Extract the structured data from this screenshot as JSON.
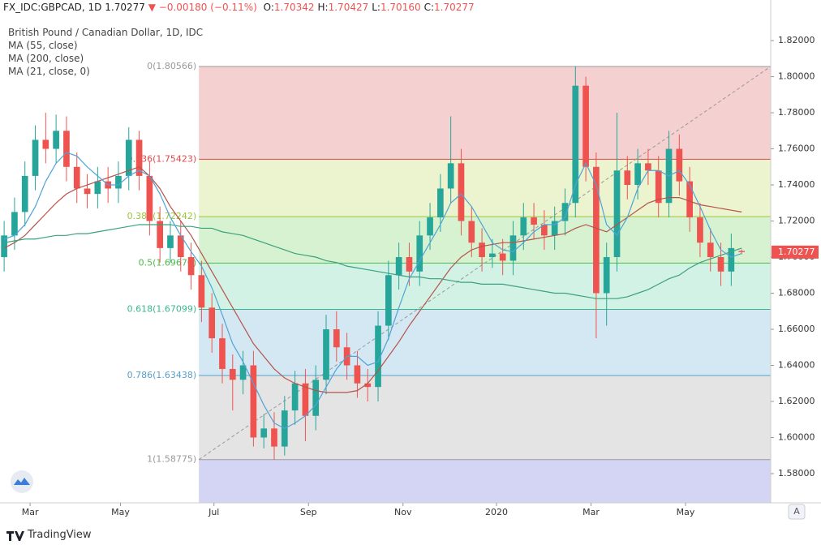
{
  "header": {
    "symbol": "FX_IDC:GBPCAD, 1D",
    "last": "1.70277",
    "change": "▼ −0.00180 (−0.11%)",
    "ohlc": [
      {
        "label": "O:",
        "value": "1.70342"
      },
      {
        "label": "H:",
        "value": "1.70427"
      },
      {
        "label": "L:",
        "value": "1.70160"
      },
      {
        "label": "C:",
        "value": "1.70277"
      }
    ]
  },
  "brand": "TradingView",
  "scale_button": "A",
  "chart_data": {
    "type": "candlestick",
    "title": "British Pound / Canadian Dollar, 1D, IDC",
    "up_color": "#26a69a",
    "down_color": "#ef5350",
    "open": [
      1.7,
      1.712,
      1.725,
      1.745,
      1.765,
      1.76,
      1.77,
      1.75,
      1.738,
      1.735,
      1.742,
      1.738,
      1.745,
      1.765,
      1.745,
      1.72,
      1.705,
      1.712,
      1.7,
      1.69,
      1.672,
      1.655,
      1.638,
      1.632,
      1.64,
      1.6,
      1.605,
      1.595,
      1.615,
      1.63,
      1.612,
      1.632,
      1.66,
      1.65,
      1.64,
      1.63,
      1.628,
      1.662,
      1.69,
      1.7,
      1.692,
      1.712,
      1.722,
      1.738,
      1.752,
      1.72,
      1.708,
      1.7,
      1.702,
      1.698,
      1.712,
      1.722,
      1.718,
      1.712,
      1.72,
      1.73,
      1.795,
      1.75,
      1.68,
      1.7,
      1.748,
      1.74,
      1.752,
      1.748,
      1.73,
      1.76,
      1.742,
      1.722,
      1.708,
      1.7,
      1.692,
      1.70342
    ],
    "high": [
      1.72,
      1.733,
      1.753,
      1.773,
      1.78,
      1.779,
      1.778,
      1.758,
      1.746,
      1.75,
      1.75,
      1.753,
      1.772,
      1.77,
      1.753,
      1.728,
      1.72,
      1.72,
      1.708,
      1.698,
      1.68,
      1.663,
      1.646,
      1.648,
      1.648,
      1.613,
      1.614,
      1.623,
      1.637,
      1.638,
      1.64,
      1.668,
      1.67,
      1.658,
      1.648,
      1.638,
      1.67,
      1.698,
      1.708,
      1.708,
      1.72,
      1.73,
      1.746,
      1.778,
      1.76,
      1.728,
      1.716,
      1.71,
      1.71,
      1.72,
      1.73,
      1.73,
      1.726,
      1.728,
      1.738,
      1.8057,
      1.8,
      1.758,
      1.708,
      1.78,
      1.756,
      1.76,
      1.76,
      1.756,
      1.77,
      1.768,
      1.75,
      1.73,
      1.716,
      1.708,
      1.713,
      1.70427
    ],
    "low": [
      1.692,
      1.704,
      1.717,
      1.737,
      1.752,
      1.752,
      1.742,
      1.73,
      1.727,
      1.727,
      1.73,
      1.73,
      1.737,
      1.737,
      1.712,
      1.697,
      1.697,
      1.692,
      1.682,
      1.664,
      1.647,
      1.63,
      1.615,
      1.624,
      1.595,
      1.594,
      1.5878,
      1.59,
      1.607,
      1.598,
      1.604,
      1.624,
      1.642,
      1.632,
      1.622,
      1.62,
      1.62,
      1.654,
      1.682,
      1.684,
      1.684,
      1.704,
      1.714,
      1.73,
      1.712,
      1.7,
      1.692,
      1.694,
      1.69,
      1.69,
      1.704,
      1.71,
      1.704,
      1.704,
      1.712,
      1.722,
      1.742,
      1.655,
      1.662,
      1.692,
      1.732,
      1.732,
      1.74,
      1.722,
      1.722,
      1.734,
      1.714,
      1.7,
      1.692,
      1.684,
      1.684,
      1.7016
    ],
    "close": [
      1.712,
      1.725,
      1.745,
      1.765,
      1.76,
      1.77,
      1.75,
      1.738,
      1.735,
      1.742,
      1.738,
      1.745,
      1.765,
      1.745,
      1.72,
      1.705,
      1.712,
      1.7,
      1.69,
      1.672,
      1.655,
      1.638,
      1.632,
      1.64,
      1.6,
      1.605,
      1.595,
      1.615,
      1.63,
      1.612,
      1.632,
      1.66,
      1.65,
      1.64,
      1.63,
      1.628,
      1.662,
      1.69,
      1.7,
      1.692,
      1.712,
      1.722,
      1.738,
      1.752,
      1.72,
      1.708,
      1.7,
      1.702,
      1.698,
      1.712,
      1.722,
      1.718,
      1.712,
      1.72,
      1.73,
      1.795,
      1.75,
      1.68,
      1.7,
      1.748,
      1.74,
      1.752,
      1.748,
      1.73,
      1.76,
      1.742,
      1.722,
      1.708,
      1.7,
      1.692,
      1.705,
      1.70277
    ],
    "series": [
      {
        "name": "MA (55, close)",
        "color": "#b5534a",
        "values": [
          1.705,
          1.708,
          1.712,
          1.718,
          1.724,
          1.73,
          1.735,
          1.738,
          1.74,
          1.742,
          1.744,
          1.746,
          1.748,
          1.75,
          1.745,
          1.738,
          1.728,
          1.72,
          1.712,
          1.702,
          1.692,
          1.682,
          1.672,
          1.662,
          1.652,
          1.645,
          1.638,
          1.633,
          1.63,
          1.628,
          1.626,
          1.625,
          1.625,
          1.625,
          1.626,
          1.63,
          1.637,
          1.645,
          1.653,
          1.662,
          1.67,
          1.678,
          1.686,
          1.694,
          1.7,
          1.704,
          1.706,
          1.707,
          1.708,
          1.708,
          1.709,
          1.71,
          1.711,
          1.712,
          1.713,
          1.716,
          1.718,
          1.716,
          1.714,
          1.718,
          1.722,
          1.726,
          1.73,
          1.732,
          1.733,
          1.733,
          1.731,
          1.729,
          1.728,
          1.727,
          1.726,
          1.725
        ]
      },
      {
        "name": "MA (200, close)",
        "color": "#3aa17e",
        "values": [
          1.708,
          1.709,
          1.71,
          1.71,
          1.711,
          1.712,
          1.712,
          1.713,
          1.713,
          1.714,
          1.715,
          1.716,
          1.717,
          1.718,
          1.718,
          1.718,
          1.718,
          1.717,
          1.717,
          1.716,
          1.716,
          1.714,
          1.713,
          1.712,
          1.71,
          1.708,
          1.706,
          1.704,
          1.702,
          1.701,
          1.7,
          1.698,
          1.697,
          1.695,
          1.694,
          1.693,
          1.692,
          1.691,
          1.69,
          1.689,
          1.689,
          1.688,
          1.688,
          1.687,
          1.686,
          1.686,
          1.685,
          1.685,
          1.685,
          1.684,
          1.683,
          1.682,
          1.681,
          1.68,
          1.68,
          1.679,
          1.678,
          1.677,
          1.677,
          1.677,
          1.678,
          1.68,
          1.682,
          1.685,
          1.688,
          1.69,
          1.694,
          1.697,
          1.699,
          1.701,
          1.703,
          1.705
        ]
      },
      {
        "name": "MA (21, close, 0)",
        "color": "#4ea3d8",
        "values": [
          1.71,
          1.712,
          1.718,
          1.728,
          1.742,
          1.752,
          1.758,
          1.756,
          1.75,
          1.745,
          1.74,
          1.74,
          1.745,
          1.748,
          1.745,
          1.735,
          1.722,
          1.712,
          1.703,
          1.695,
          1.683,
          1.668,
          1.652,
          1.642,
          1.63,
          1.618,
          1.608,
          1.605,
          1.608,
          1.612,
          1.618,
          1.628,
          1.638,
          1.645,
          1.645,
          1.64,
          1.642,
          1.655,
          1.672,
          1.688,
          1.698,
          1.708,
          1.718,
          1.73,
          1.735,
          1.728,
          1.718,
          1.708,
          1.704,
          1.703,
          1.708,
          1.714,
          1.718,
          1.718,
          1.722,
          1.74,
          1.752,
          1.74,
          1.718,
          1.712,
          1.722,
          1.738,
          1.748,
          1.748,
          1.745,
          1.748,
          1.74,
          1.728,
          1.715,
          1.704,
          1.7,
          1.702
        ]
      }
    ],
    "fib_start_x": 18.75,
    "fib_levels": [
      {
        "label": "0(1.80566)",
        "price": 1.80566,
        "color": "#999999",
        "fill": "#f5d0d0"
      },
      {
        "label": "0.236(1.75423)",
        "price": 1.75423,
        "color": "#e04848",
        "fill": "#ebf3cf"
      },
      {
        "label": "0.382(1.72242)",
        "price": 1.72242,
        "color": "#9cc43c",
        "fill": "#d7f2d0"
      },
      {
        "label": "0.5(1.69670)",
        "price": 1.6967,
        "color": "#4cbb4c",
        "fill": "#d3f2e6"
      },
      {
        "label": "0.618(1.67099)",
        "price": 1.67099,
        "color": "#3ab88e",
        "fill": "#d3e8f2"
      },
      {
        "label": "0.786(1.63438)",
        "price": 1.63438,
        "color": "#5a9fc8",
        "fill": "#e4e4e4"
      },
      {
        "label": "1(1.58775)",
        "price": 1.58775,
        "color": "#999999",
        "fill": "#d4d4f5"
      }
    ],
    "price_label": "1.70277",
    "xlim": [
      -0.4,
      73.8
    ],
    "xticks": [
      {
        "value": 2.5,
        "label": "Mar"
      },
      {
        "value": 11.2,
        "label": "May"
      },
      {
        "value": 20.2,
        "label": "Jul"
      },
      {
        "value": 29.3,
        "label": "Sep"
      },
      {
        "value": 38.4,
        "label": "Nov"
      },
      {
        "value": 47.4,
        "label": "2020"
      },
      {
        "value": 56.5,
        "label": "Mar"
      },
      {
        "value": 65.6,
        "label": "May"
      }
    ],
    "ylim": [
      1.5638,
      1.8425
    ],
    "yticks": [
      {
        "value": 1.58,
        "label": "1.58000"
      },
      {
        "value": 1.6,
        "label": "1.60000"
      },
      {
        "value": 1.62,
        "label": "1.62000"
      },
      {
        "value": 1.64,
        "label": "1.64000"
      },
      {
        "value": 1.66,
        "label": "1.66000"
      },
      {
        "value": 1.68,
        "label": "1.68000"
      },
      {
        "value": 1.7,
        "label": "1.70000"
      },
      {
        "value": 1.72,
        "label": "1.72000"
      },
      {
        "value": 1.74,
        "label": "1.74000"
      },
      {
        "value": 1.76,
        "label": "1.76000"
      },
      {
        "value": 1.78,
        "label": "1.78000"
      },
      {
        "value": 1.8,
        "label": "1.80000"
      },
      {
        "value": 1.82,
        "label": "1.82000"
      }
    ]
  }
}
